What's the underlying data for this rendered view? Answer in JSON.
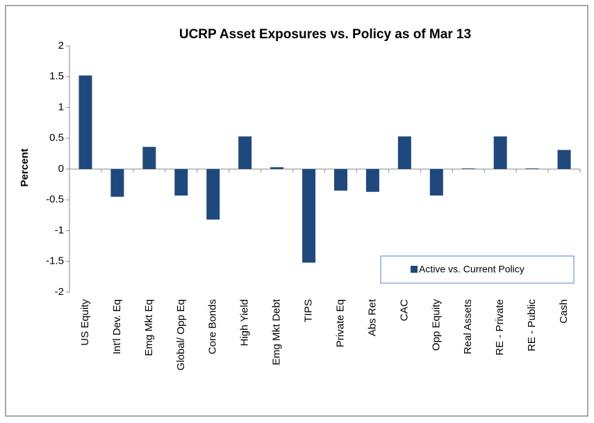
{
  "chart_data": {
    "type": "bar",
    "title": "UCRP Asset Exposures vs. Policy as of Mar 13",
    "y_label": "Percent",
    "categories": [
      "US Equity",
      "Int'l Dev. Eq",
      "Emg Mkt Eq",
      "Global/ Opp Eq",
      "Core Bonds",
      "High Yield",
      "Emg Mkt Debt",
      "TIPS",
      "Private Eq",
      "Abs Ret",
      "CAC",
      "Opp Equity",
      "Real Assets",
      "RE - Private",
      "RE - Public",
      "Cash"
    ],
    "series": [
      {
        "name": "Active vs. Current Policy",
        "color": "#1f497d",
        "values": [
          1.52,
          -0.45,
          0.36,
          -0.43,
          -0.82,
          0.53,
          0.03,
          -1.52,
          -0.35,
          -0.37,
          0.53,
          -0.43,
          0.01,
          0.53,
          0.01,
          0.31
        ]
      }
    ],
    "ylim": [
      -2,
      2
    ],
    "yticks": [
      -2,
      -1.5,
      -1,
      -0.5,
      0,
      0.5,
      1,
      1.5,
      2
    ],
    "grid": false,
    "legend": "lower right"
  }
}
